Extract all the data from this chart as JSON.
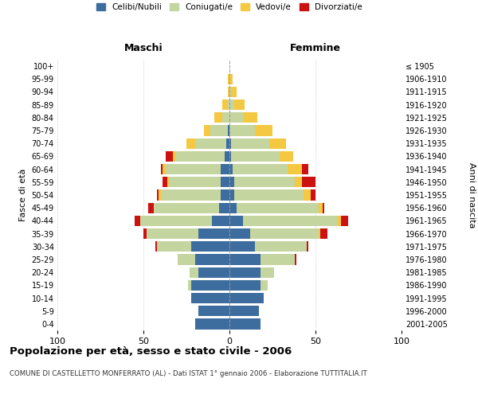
{
  "title": "Popolazione per età, sesso e stato civile - 2006",
  "subtitle": "COMUNE DI CASTELLETTO MONFERRATO (AL) - Dati ISTAT 1° gennaio 2006 - Elaborazione TUTTITALIA.IT",
  "ylabel_left": "Fasce di età",
  "ylabel_right": "Anni di nascita",
  "xlabel_left": "Maschi",
  "xlabel_right": "Femmine",
  "age_groups": [
    "0-4",
    "5-9",
    "10-14",
    "15-19",
    "20-24",
    "25-29",
    "30-34",
    "35-39",
    "40-44",
    "45-49",
    "50-54",
    "55-59",
    "60-64",
    "65-69",
    "70-74",
    "75-79",
    "80-84",
    "85-89",
    "90-94",
    "95-99",
    "100+"
  ],
  "birth_years": [
    "2001-2005",
    "1996-2000",
    "1991-1995",
    "1986-1990",
    "1981-1985",
    "1976-1980",
    "1971-1975",
    "1966-1970",
    "1961-1965",
    "1956-1960",
    "1951-1955",
    "1946-1950",
    "1941-1945",
    "1936-1940",
    "1931-1935",
    "1926-1930",
    "1921-1925",
    "1916-1920",
    "1911-1915",
    "1906-1910",
    "≤ 1905"
  ],
  "colors": {
    "celibe": "#3d6d9e",
    "coniugato": "#c5d5a0",
    "vedovo": "#f5c842",
    "divorziato": "#cc1111"
  },
  "legend": [
    "Celibi/Nubili",
    "Coniugati/e",
    "Vedovi/e",
    "Divorziati/e"
  ],
  "males": {
    "celibe": [
      20,
      18,
      22,
      22,
      18,
      20,
      22,
      18,
      10,
      6,
      5,
      5,
      5,
      3,
      2,
      1,
      0,
      0,
      0,
      0,
      0
    ],
    "coniugato": [
      0,
      0,
      0,
      2,
      5,
      10,
      20,
      30,
      42,
      38,
      35,
      30,
      32,
      28,
      18,
      10,
      4,
      1,
      0,
      0,
      0
    ],
    "vedovo": [
      0,
      0,
      0,
      0,
      0,
      0,
      0,
      0,
      0,
      0,
      1,
      1,
      2,
      2,
      5,
      4,
      5,
      3,
      1,
      1,
      0
    ],
    "divorziato": [
      0,
      0,
      0,
      0,
      0,
      0,
      1,
      2,
      3,
      3,
      1,
      3,
      1,
      4,
      0,
      0,
      0,
      0,
      0,
      0,
      0
    ]
  },
  "females": {
    "celibe": [
      18,
      17,
      20,
      18,
      18,
      18,
      15,
      12,
      8,
      4,
      3,
      3,
      2,
      1,
      1,
      0,
      0,
      0,
      0,
      0,
      0
    ],
    "coniugato": [
      0,
      0,
      0,
      4,
      8,
      20,
      30,
      40,
      55,
      48,
      40,
      35,
      32,
      28,
      22,
      15,
      8,
      3,
      1,
      0,
      0
    ],
    "vedovo": [
      0,
      0,
      0,
      0,
      0,
      0,
      0,
      1,
      2,
      2,
      4,
      4,
      8,
      8,
      10,
      10,
      8,
      6,
      3,
      2,
      0
    ],
    "divorziato": [
      0,
      0,
      0,
      0,
      0,
      1,
      1,
      4,
      4,
      1,
      3,
      8,
      4,
      0,
      0,
      0,
      0,
      0,
      0,
      0,
      0
    ]
  },
  "xlim": 100,
  "bg_color": "#ffffff",
  "grid_color": "#cccccc",
  "bar_height": 0.82
}
